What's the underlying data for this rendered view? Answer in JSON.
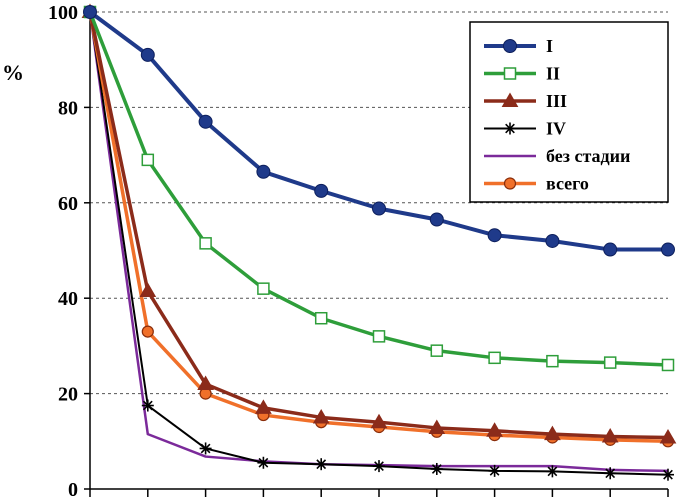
{
  "chart_data": {
    "type": "line",
    "title": "",
    "xlabel": "",
    "ylabel": "%",
    "ylim": [
      0,
      100
    ],
    "yticks": [
      0,
      20,
      40,
      60,
      80,
      100
    ],
    "ytick_labels": [
      "0",
      "20",
      "40",
      "60",
      "80",
      "100"
    ],
    "x": [
      0,
      1,
      2,
      3,
      4,
      5,
      6,
      7,
      8,
      9,
      10
    ],
    "grid": "horizontal dashed",
    "legend_position": "top-right",
    "series": [
      {
        "name": "I",
        "color": "#1f3a8a",
        "marker": "circle-filled",
        "values": [
          100,
          91,
          77,
          66.5,
          62.5,
          58.8,
          56.5,
          53.2,
          52,
          50.2,
          50.2
        ]
      },
      {
        "name": "II",
        "color": "#2e9e3a",
        "marker": "square-open",
        "values": [
          100,
          69,
          51.5,
          42,
          35.8,
          32,
          29,
          27.5,
          26.8,
          26.5,
          26
        ]
      },
      {
        "name": "III",
        "color": "#8b2b1a",
        "marker": "triangle-filled",
        "values": [
          100,
          41.5,
          22,
          17,
          15,
          14,
          12.8,
          12.2,
          11.5,
          11,
          10.8
        ]
      },
      {
        "name": "IV",
        "color": "#000000",
        "marker": "star",
        "values": [
          100,
          17.5,
          8.5,
          5.5,
          5.2,
          4.8,
          4.2,
          3.8,
          3.7,
          3.3,
          3
        ]
      },
      {
        "name": "без стадии",
        "color": "#7b2a9a",
        "marker": "none",
        "values": [
          100,
          11.5,
          6.8,
          5.8,
          5.2,
          5,
          4.8,
          4.8,
          4.8,
          4,
          3.8
        ]
      },
      {
        "name": "всего",
        "color": "#f0702a",
        "marker": "circle-orange",
        "values": [
          100,
          33,
          20,
          15.5,
          14,
          13,
          12,
          11.3,
          10.8,
          10.3,
          10
        ]
      }
    ]
  }
}
